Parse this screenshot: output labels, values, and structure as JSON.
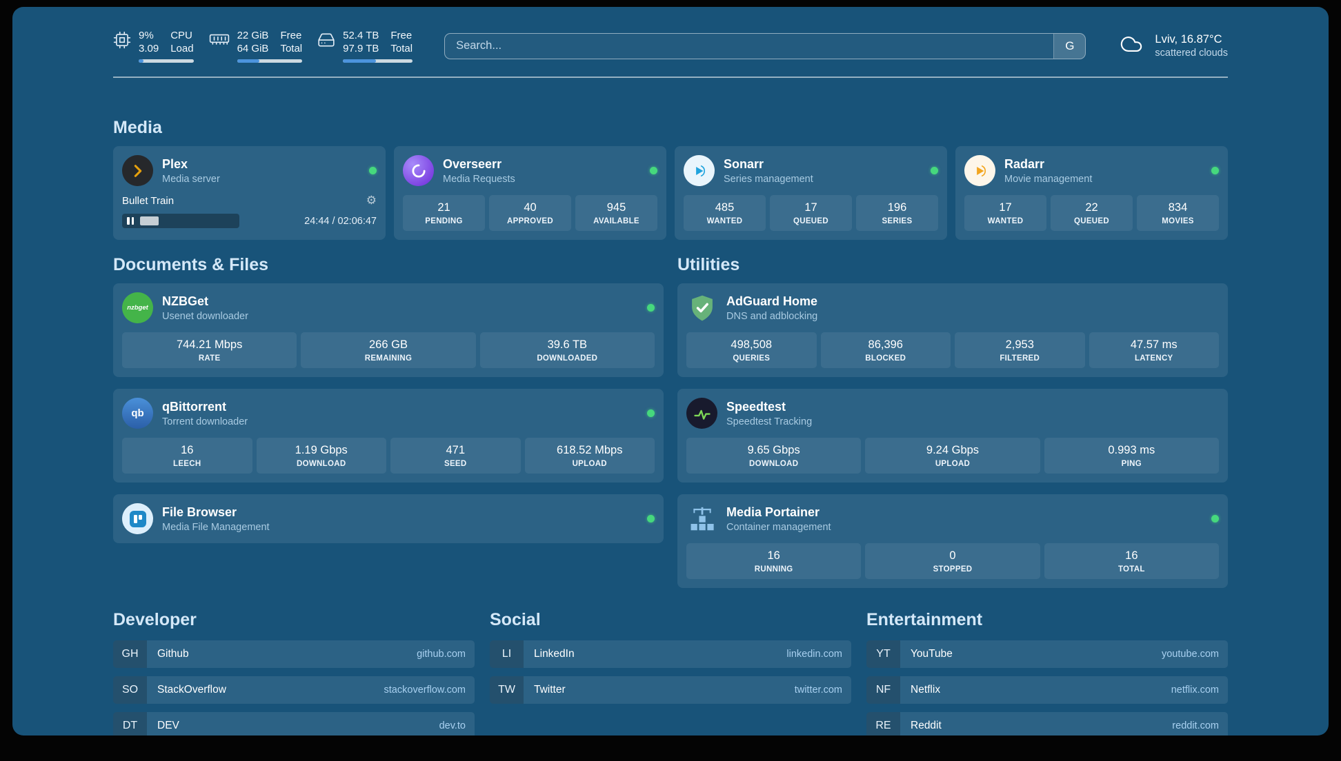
{
  "topbar": {
    "cpu": {
      "icon": "cpu-icon",
      "value_top": "9%",
      "value_bottom": "3.09",
      "label_top": "CPU",
      "label_bottom": "Load",
      "bar_percent": 9
    },
    "memory": {
      "icon": "memory-icon",
      "value_top": "22 GiB",
      "value_bottom": "64 GiB",
      "label_top": "Free",
      "label_bottom": "Total",
      "bar_percent": 34
    },
    "disk": {
      "icon": "disk-icon",
      "value_top": "52.4 TB",
      "value_bottom": "97.9 TB",
      "label_top": "Free",
      "label_bottom": "Total",
      "bar_percent": 47
    },
    "search": {
      "placeholder": "Search...",
      "provider_button": "G"
    },
    "weather": {
      "icon": "cloud-icon",
      "location": "Lviv, 16.87°C",
      "condition": "scattered clouds"
    }
  },
  "media": {
    "heading": "Media",
    "plex": {
      "icon": "plex-icon",
      "title": "Plex",
      "subtitle": "Media server",
      "status": "online",
      "now_playing": "Bullet Train",
      "time": "24:44 / 02:06:47",
      "progress_percent": 20
    },
    "overseerr": {
      "icon": "overseerr-icon",
      "title": "Overseerr",
      "subtitle": "Media Requests",
      "status": "online",
      "stats": [
        {
          "value": "21",
          "label": "PENDING"
        },
        {
          "value": "40",
          "label": "APPROVED"
        },
        {
          "value": "945",
          "label": "AVAILABLE"
        }
      ]
    },
    "sonarr": {
      "icon": "sonarr-icon",
      "title": "Sonarr",
      "subtitle": "Series management",
      "status": "online",
      "stats": [
        {
          "value": "485",
          "label": "WANTED"
        },
        {
          "value": "17",
          "label": "QUEUED"
        },
        {
          "value": "196",
          "label": "SERIES"
        }
      ]
    },
    "radarr": {
      "icon": "radarr-icon",
      "title": "Radarr",
      "subtitle": "Movie management",
      "status": "online",
      "stats": [
        {
          "value": "17",
          "label": "WANTED"
        },
        {
          "value": "22",
          "label": "QUEUED"
        },
        {
          "value": "834",
          "label": "MOVIES"
        }
      ]
    }
  },
  "documents": {
    "heading": "Documents & Files",
    "nzbget": {
      "icon": "nzbget-icon",
      "title": "NZBGet",
      "subtitle": "Usenet downloader",
      "status": "online",
      "stats": [
        {
          "value": "744.21 Mbps",
          "label": "RATE"
        },
        {
          "value": "266 GB",
          "label": "REMAINING"
        },
        {
          "value": "39.6 TB",
          "label": "DOWNLOADED"
        }
      ]
    },
    "qbittorrent": {
      "icon": "qbittorrent-icon",
      "title": "qBittorrent",
      "subtitle": "Torrent downloader",
      "status": "online",
      "stats": [
        {
          "value": "16",
          "label": "LEECH"
        },
        {
          "value": "1.19 Gbps",
          "label": "DOWNLOAD"
        },
        {
          "value": "471",
          "label": "SEED"
        },
        {
          "value": "618.52 Mbps",
          "label": "UPLOAD"
        }
      ]
    },
    "filebrowser": {
      "icon": "filebrowser-icon",
      "title": "File Browser",
      "subtitle": "Media File Management",
      "status": "online"
    }
  },
  "utilities": {
    "heading": "Utilities",
    "adguard": {
      "icon": "adguard-icon",
      "title": "AdGuard Home",
      "subtitle": "DNS and adblocking",
      "status": "online",
      "stats": [
        {
          "value": "498,508",
          "label": "QUERIES"
        },
        {
          "value": "86,396",
          "label": "BLOCKED"
        },
        {
          "value": "2,953",
          "label": "FILTERED"
        },
        {
          "value": "47.57 ms",
          "label": "LATENCY"
        }
      ]
    },
    "speedtest": {
      "icon": "speedtest-icon",
      "title": "Speedtest",
      "subtitle": "Speedtest Tracking",
      "status": "online",
      "stats": [
        {
          "value": "9.65 Gbps",
          "label": "DOWNLOAD"
        },
        {
          "value": "9.24 Gbps",
          "label": "UPLOAD"
        },
        {
          "value": "0.993 ms",
          "label": "PING"
        }
      ]
    },
    "portainer": {
      "icon": "portainer-icon",
      "title": "Media Portainer",
      "subtitle": "Container management",
      "status": "online",
      "stats": [
        {
          "value": "16",
          "label": "RUNNING"
        },
        {
          "value": "0",
          "label": "STOPPED"
        },
        {
          "value": "16",
          "label": "TOTAL"
        }
      ]
    }
  },
  "bookmarks": {
    "developer": {
      "heading": "Developer",
      "items": [
        {
          "abbr": "GH",
          "name": "Github",
          "domain": "github.com"
        },
        {
          "abbr": "SO",
          "name": "StackOverflow",
          "domain": "stackoverflow.com"
        },
        {
          "abbr": "DT",
          "name": "DEV",
          "domain": "dev.to"
        }
      ]
    },
    "social": {
      "heading": "Social",
      "items": [
        {
          "abbr": "LI",
          "name": "LinkedIn",
          "domain": "linkedin.com"
        },
        {
          "abbr": "TW",
          "name": "Twitter",
          "domain": "twitter.com"
        }
      ]
    },
    "entertainment": {
      "heading": "Entertainment",
      "items": [
        {
          "abbr": "YT",
          "name": "YouTube",
          "domain": "youtube.com"
        },
        {
          "abbr": "NF",
          "name": "Netflix",
          "domain": "netflix.com"
        },
        {
          "abbr": "RE",
          "name": "Reddit",
          "domain": "reddit.com"
        }
      ]
    }
  },
  "colors": {
    "background": "#185379",
    "status_online": "#46d87d",
    "accent_bar": "#4c94dd",
    "plex_accent": "#e5a00d"
  }
}
